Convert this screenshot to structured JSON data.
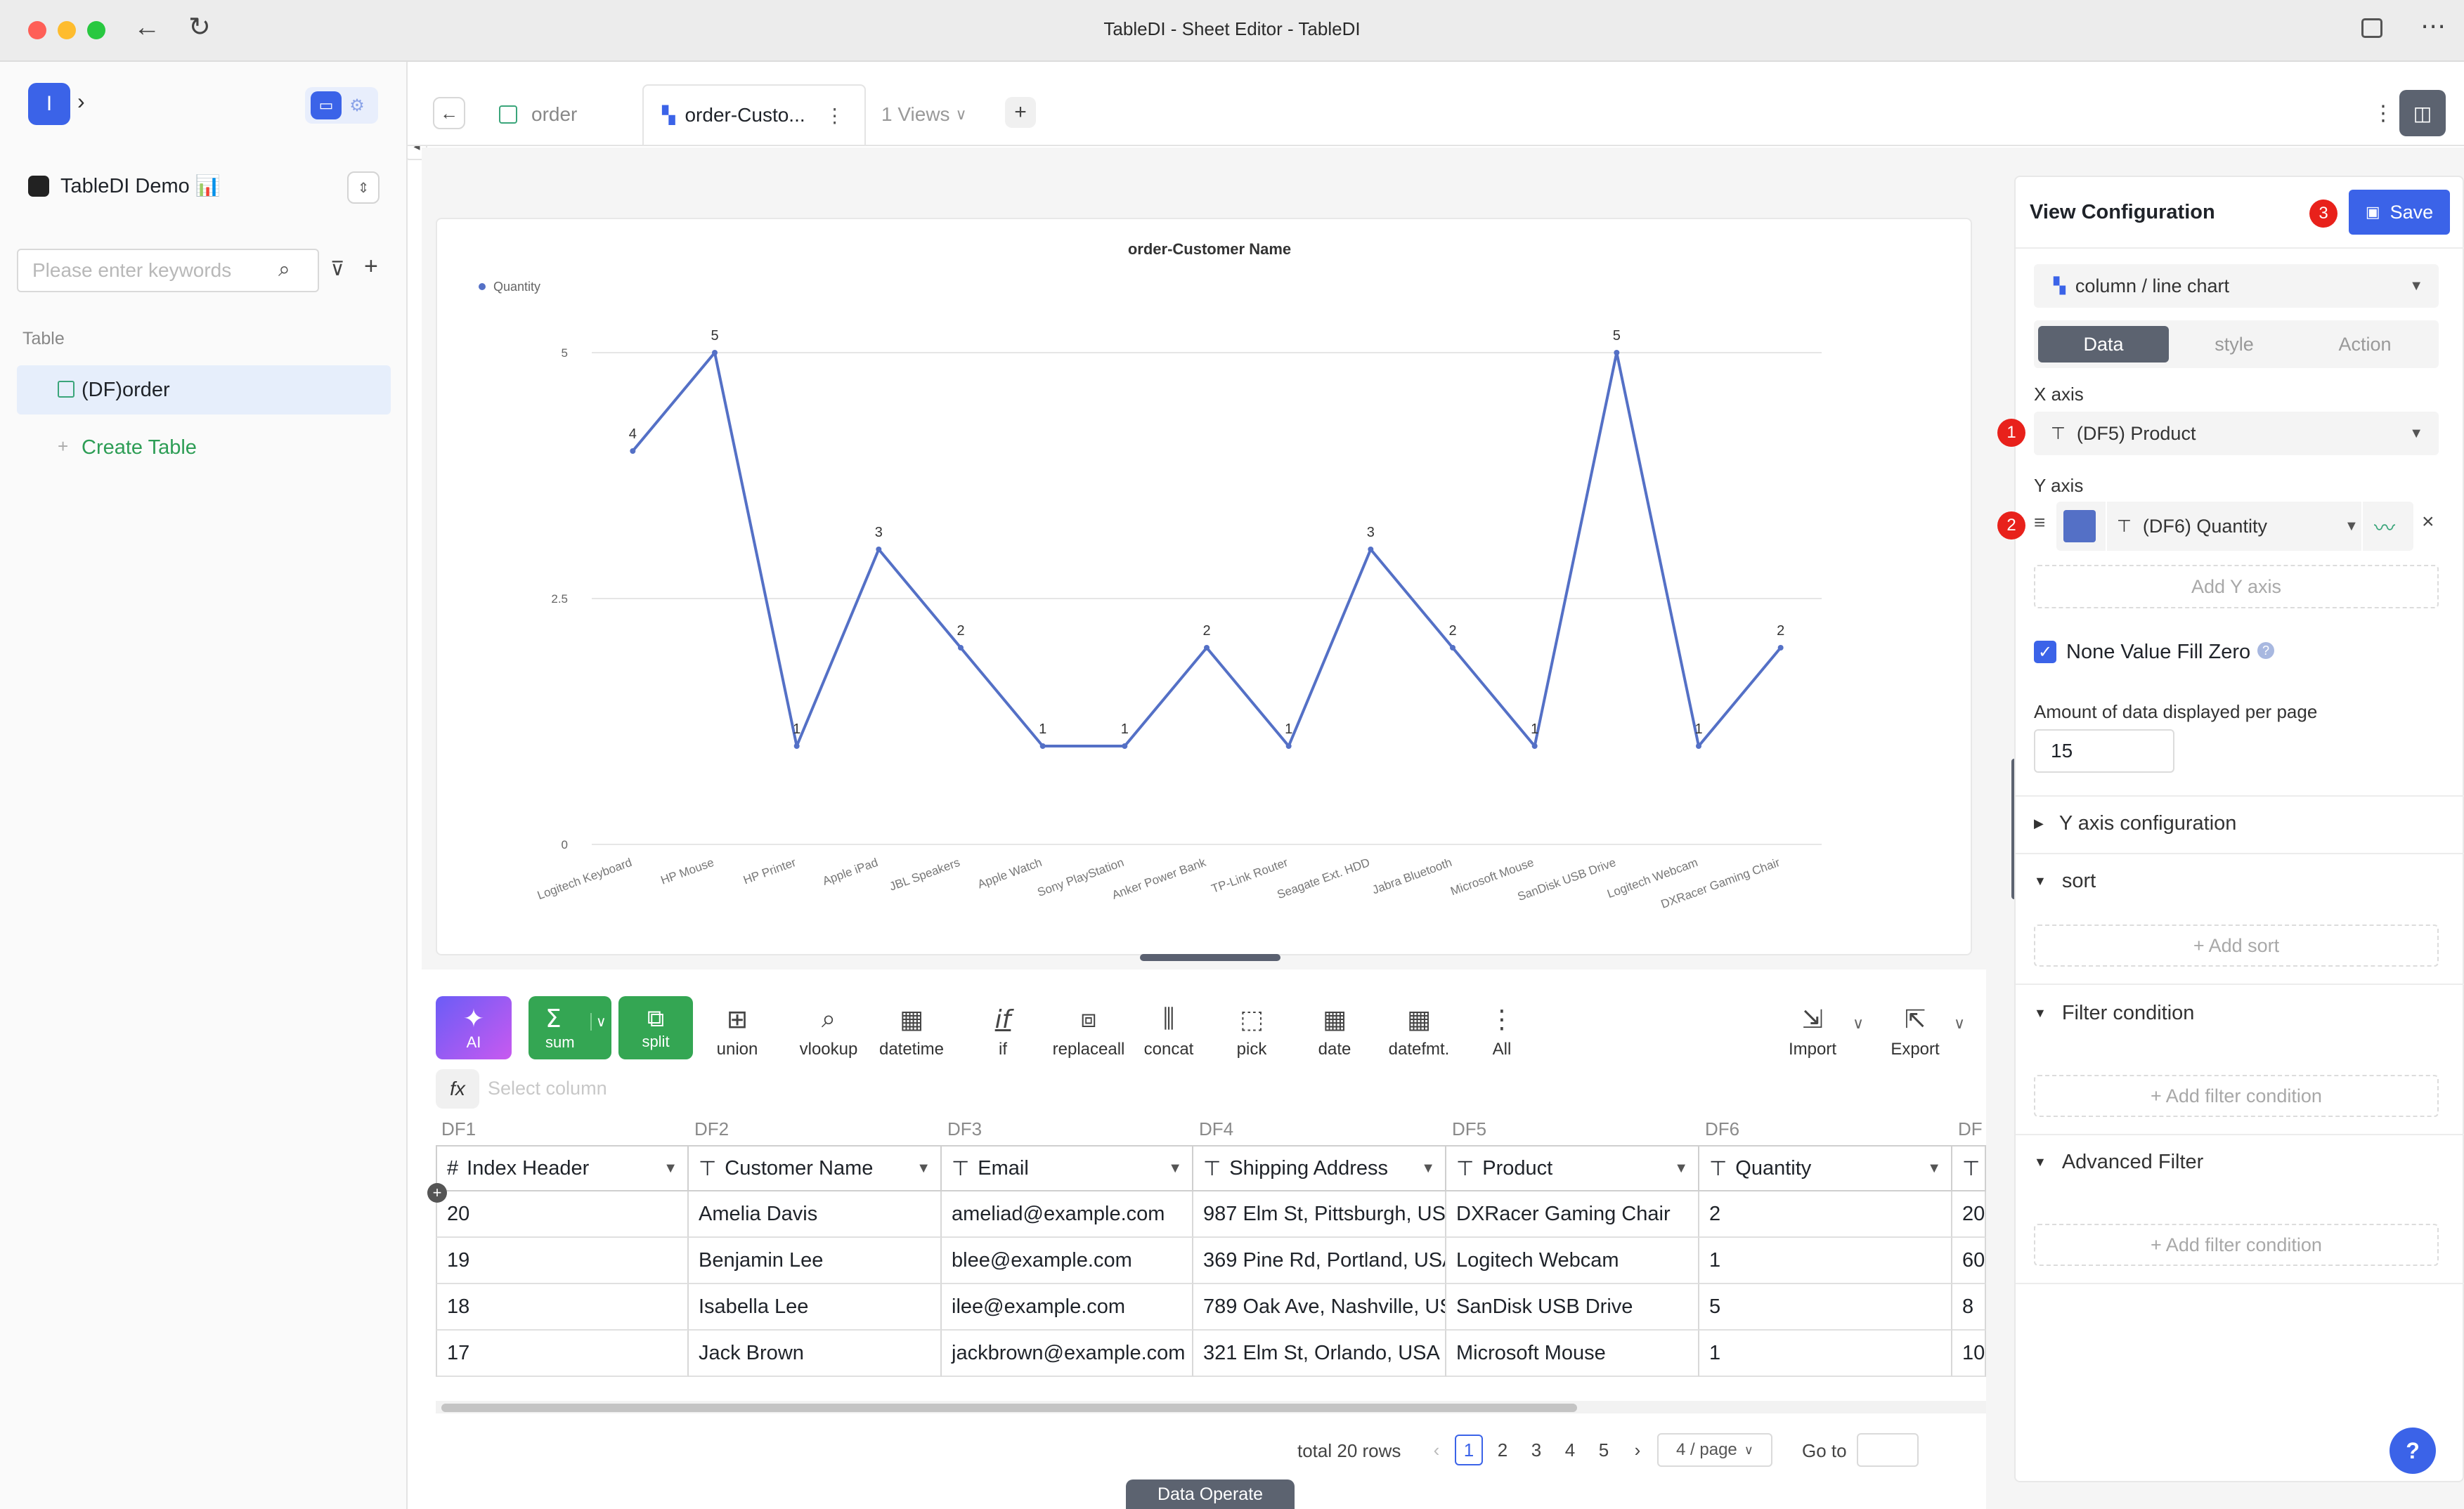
{
  "window": {
    "title": "TableDI - Sheet Editor - TableDI"
  },
  "sidebar": {
    "logo_letter": "I",
    "workspace_name": "TableDI Demo 📊",
    "search": {
      "placeholder": "Please enter keywords"
    },
    "section_label": "Table",
    "tables": [
      {
        "label": "(DF)order"
      }
    ],
    "create_label": "Create Table"
  },
  "tabs": [
    {
      "label": "order"
    },
    {
      "label": "order-Custo..."
    }
  ],
  "views_label": "1 Views",
  "chart_data": {
    "type": "line",
    "title": "order-Customer Name",
    "legend": "Quantity",
    "legend_position": "top-left",
    "categories": [
      "Logitech Keyboard",
      "HP Mouse",
      "HP Printer",
      "Apple iPad",
      "JBL Speakers",
      "Apple Watch",
      "Sony PlayStation",
      "Anker Power Bank",
      "TP-Link Router",
      "Seagate Ext. HDD",
      "Jabra Bluetooth",
      "Microsoft Mouse",
      "SanDisk USB Drive",
      "Logitech Webcam",
      "DXRacer Gaming Chair"
    ],
    "series": [
      {
        "name": "Quantity",
        "values": [
          4,
          5,
          1,
          3,
          2,
          1,
          1,
          2,
          1,
          3,
          2,
          1,
          5,
          1,
          2
        ]
      }
    ],
    "y_ticks": [
      "0",
      "2.5",
      "5"
    ],
    "ylim": [
      0,
      5
    ],
    "grid": true,
    "color": "#5470c6"
  },
  "toolbar": {
    "ai": "AI",
    "sum": "sum",
    "split": "split",
    "union": "union",
    "vlookup": "vlookup",
    "datetime": "datetime",
    "if": "if",
    "replaceall": "replaceall",
    "concat": "concat",
    "pick": "pick",
    "date": "date",
    "datefmt": "datefmt.",
    "all": "All",
    "import": "Import",
    "export": "Export",
    "formula_placeholder": "Select column"
  },
  "table": {
    "df_labels": [
      "DF1",
      "DF2",
      "DF3",
      "DF4",
      "DF5",
      "DF6",
      "DF"
    ],
    "headers": [
      "Index Header",
      "Customer Name",
      "Email",
      "Shipping Address",
      "Product",
      "Quantity"
    ],
    "rows": [
      [
        "20",
        "Amelia Davis",
        "ameliad@example.com",
        "987 Elm St, Pittsburgh, US",
        "DXRacer Gaming Chair",
        "2",
        "20"
      ],
      [
        "19",
        "Benjamin Lee",
        "blee@example.com",
        "369 Pine Rd, Portland, USA",
        "Logitech Webcam",
        "1",
        "60"
      ],
      [
        "18",
        "Isabella Lee",
        "ilee@example.com",
        "789 Oak Ave, Nashville, US",
        "SanDisk USB Drive",
        "5",
        "8"
      ],
      [
        "17",
        "Jack Brown",
        "jackbrown@example.com",
        "321 Elm St, Orlando, USA",
        "Microsoft Mouse",
        "1",
        "10"
      ]
    ]
  },
  "pagination": {
    "total": "total 20 rows",
    "pages": [
      "1",
      "2",
      "3",
      "4",
      "5"
    ],
    "current": "1",
    "page_size": "4 / page",
    "goto_label": "Go to"
  },
  "bottom_tab": "Data Operate",
  "config": {
    "title": "View Configuration",
    "save": "Save",
    "chart_type": "column / line chart",
    "tabs": [
      "Data",
      "style",
      "Action"
    ],
    "x_axis_label": "X axis",
    "x_axis_value": "(DF5) Product",
    "y_axis_label": "Y axis",
    "y_axis_value": "(DF6) Quantity",
    "y_color": "#5470c6",
    "add_y_axis": "Add Y axis",
    "none_fill_zero": "None Value Fill Zero",
    "amount_label": "Amount of data displayed per page",
    "amount_value": "15",
    "y_axis_config": "Y axis configuration",
    "sort": "sort",
    "add_sort": "+ Add sort",
    "filter_condition": "Filter condition",
    "add_filter": "+ Add filter condition",
    "advanced_filter": "Advanced Filter",
    "add_filter2": "+ Add filter condition",
    "badges": [
      "1",
      "2",
      "3"
    ]
  }
}
